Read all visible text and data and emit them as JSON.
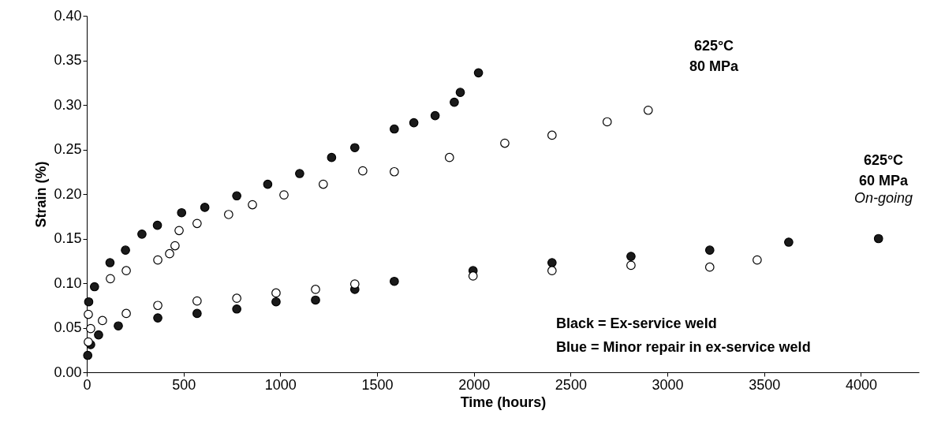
{
  "chart_data": {
    "type": "scatter",
    "xlabel": "Time (hours)",
    "ylabel": "Strain (%)",
    "xlim": [
      0,
      4300
    ],
    "xticks": [
      0,
      500,
      {
        "value": 1000,
        "label": "1000"
      },
      {
        "value": 1500,
        "label": "1500"
      },
      {
        "value": 2000,
        "label": "2000"
      },
      {
        "value": 2500,
        "label": "2500"
      },
      {
        "value": 3000,
        "label": "3000"
      },
      {
        "value": 3500,
        "label": "3500"
      },
      {
        "value": 4000,
        "label": "4000"
      }
    ],
    "ylim": [
      0,
      0.4
    ],
    "yticks": [
      {
        "value": 0,
        "label": "0.00"
      },
      0.05,
      {
        "value": 0.1,
        "label": "0.10"
      },
      0.15,
      {
        "value": 0.2,
        "label": "0.20"
      },
      0.25,
      {
        "value": 0.3,
        "label": "0.30"
      },
      0.35,
      {
        "value": 0.4,
        "label": "0.40"
      }
    ],
    "marker": "circle",
    "grid": false,
    "series": [
      {
        "color": "#1a1a1a",
        "x": [
          10,
          40,
          120,
          200,
          285,
          365,
          490,
          610,
          775,
          935,
          1100,
          1265,
          1385,
          1589,
          1690,
          1800,
          1899,
          1930,
          2024
        ],
        "values": [
          0.079,
          0.096,
          0.123,
          0.137,
          0.155,
          0.165,
          0.179,
          0.185,
          0.198,
          0.211,
          0.223,
          0.241,
          0.252,
          0.273,
          0.28,
          0.288,
          0.303,
          0.314,
          0.336
        ]
      },
      {
        "color": "#ffffff",
        "x": [
          8,
          122,
          204,
          367,
          428,
          456,
          477,
          570,
          733,
          856,
          1019,
          1222,
          1426,
          1589,
          1874,
          2160,
          2404,
          2689,
          2901
        ],
        "values": [
          0.065,
          0.105,
          0.114,
          0.126,
          0.133,
          0.142,
          0.159,
          0.167,
          0.177,
          0.188,
          0.199,
          0.211,
          0.226,
          0.225,
          0.241,
          0.257,
          0.266,
          0.281,
          0.294
        ]
      },
      {
        "color": "#1a1a1a",
        "x": [
          5,
          20,
          61,
          163,
          367,
          570,
          775,
          978,
          1182,
          1385,
          1589,
          1996,
          2404,
          2812,
          3219,
          3627,
          4091
        ],
        "values": [
          0.019,
          0.031,
          0.042,
          0.052,
          0.061,
          0.066,
          0.071,
          0.079,
          0.081,
          0.093,
          0.102,
          0.114,
          0.123,
          0.13,
          0.137,
          0.146,
          0.15
        ]
      },
      {
        "color": "#ffffff",
        "x": [
          8,
          20,
          81,
          204,
          367,
          570,
          775,
          978,
          1182,
          1385,
          1996,
          2404,
          2812,
          3219,
          3464
        ],
        "values": [
          0.034,
          0.049,
          0.058,
          0.066,
          0.075,
          0.08,
          0.083,
          0.089,
          0.093,
          0.099,
          0.108,
          0.114,
          0.12,
          0.118,
          0.126
        ]
      }
    ],
    "annotations": [
      "625°C\n80 MPa",
      "625°C\n60 MPa",
      "On-going",
      "Black = Ex-service weld",
      "Blue = Minor repair in ex-service weld"
    ]
  }
}
